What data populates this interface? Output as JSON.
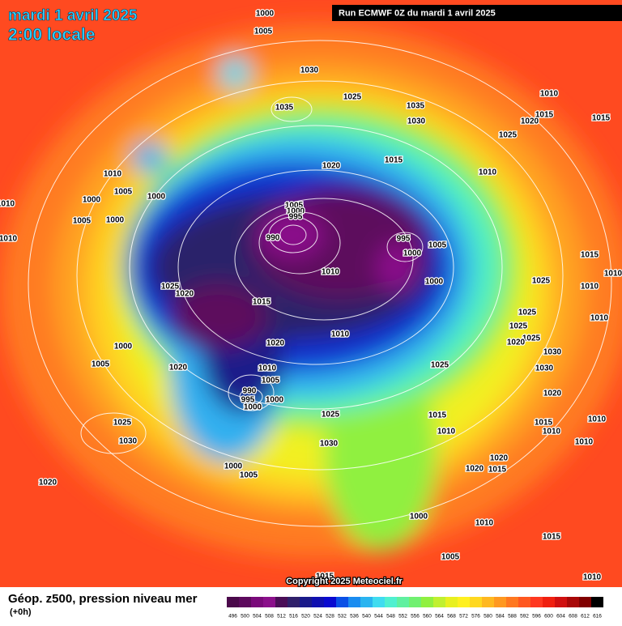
{
  "header": {
    "date": "mardi 1 avril 2025",
    "time": "2:00 locale",
    "run": "Run ECMWF 0Z du mardi 1 avril 2025"
  },
  "footer": {
    "copyright": "Copyright 2025 Meteociel.fr",
    "legend_title": "Géop. z500, pression niveau mer",
    "lead_time": "(+0h)"
  },
  "scale": {
    "values": [
      496,
      500,
      504,
      508,
      512,
      516,
      520,
      524,
      528,
      532,
      536,
      540,
      544,
      548,
      552,
      556,
      560,
      564,
      568,
      572,
      576,
      580,
      584,
      588,
      592,
      596,
      600,
      604,
      608,
      612,
      616
    ],
    "colors": [
      "#4b0a4b",
      "#5d0a5d",
      "#7a0a7a",
      "#8b108b",
      "#4a0e57",
      "#30206a",
      "#1a1a8a",
      "#1010b0",
      "#0a0ad0",
      "#0a50e6",
      "#1a8cf0",
      "#2ab4f0",
      "#40dcf0",
      "#50f0d0",
      "#60f0a0",
      "#70f070",
      "#90f040",
      "#c0f030",
      "#e8f020",
      "#fff020",
      "#ffd820",
      "#ffb820",
      "#ff9820",
      "#ff7820",
      "#ff5820",
      "#ff3820",
      "#f02010",
      "#d01010",
      "#a80808",
      "#800000",
      "#000000"
    ]
  },
  "isobar_labels": [
    1000,
    1005,
    1030,
    1025,
    1035,
    1035,
    1030,
    1010,
    1020,
    1015,
    1015,
    1025,
    1020,
    1015,
    1010,
    1010,
    1005,
    1000,
    1000,
    1005,
    1000,
    1010,
    1010,
    1005,
    1000,
    995,
    990,
    995,
    1005,
    1000,
    1000,
    1010,
    1025,
    1020,
    1015,
    1025,
    1015,
    1010,
    1010,
    1025,
    1010,
    1025,
    1025,
    1020,
    1030,
    1030,
    1010,
    1020,
    1000,
    1005,
    1020,
    1010,
    1005,
    1025,
    990,
    995,
    1000,
    1000,
    1020,
    1025,
    1015,
    1010,
    1015,
    1010,
    1010,
    1010,
    1025,
    1030,
    1030,
    1020,
    1020,
    1015,
    1000,
    1005,
    1020,
    1000,
    1010,
    1015,
    1005,
    1015,
    1010
  ]
}
